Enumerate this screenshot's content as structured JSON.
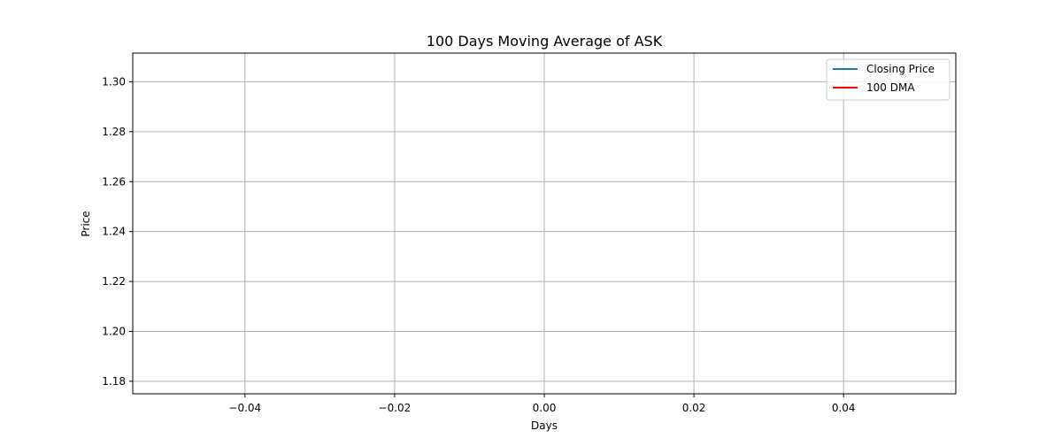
{
  "chart_data": {
    "type": "line",
    "title": "100 Days Moving Average of ASK",
    "xlabel": "Days",
    "ylabel": "Price",
    "xlim": [
      -0.055,
      0.055
    ],
    "ylim": [
      1.175,
      1.3115
    ],
    "x_ticks": [
      -0.04,
      -0.02,
      0.0,
      0.02,
      0.04
    ],
    "x_tick_labels": [
      "−0.04",
      "−0.02",
      "0.00",
      "0.02",
      "0.04"
    ],
    "y_ticks": [
      1.18,
      1.2,
      1.22,
      1.24,
      1.26,
      1.28,
      1.3
    ],
    "y_tick_labels": [
      "1.18",
      "1.20",
      "1.22",
      "1.24",
      "1.26",
      "1.28",
      "1.30"
    ],
    "grid": true,
    "legend_position": "top-right",
    "series": [
      {
        "name": "Closing Price",
        "color": "#1f77b4",
        "x": [],
        "values": []
      },
      {
        "name": "100 DMA",
        "color": "#ff0000",
        "x": [],
        "values": []
      }
    ]
  }
}
